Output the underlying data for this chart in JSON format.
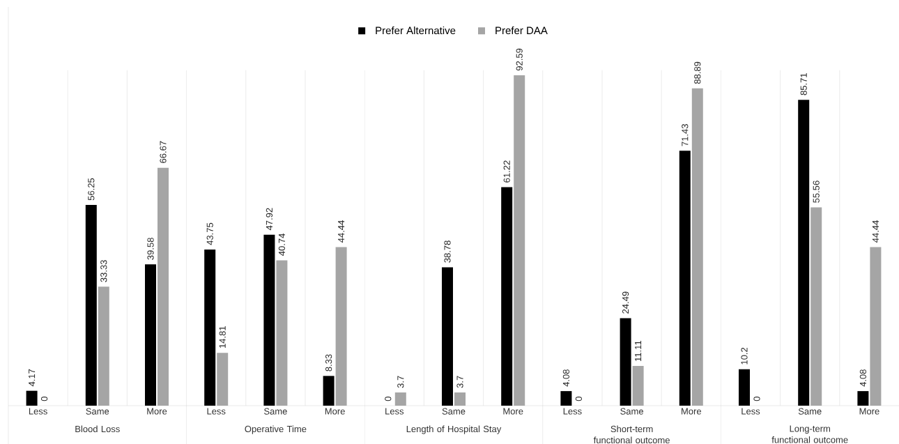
{
  "chart_data": {
    "type": "bar",
    "categories": [
      "Less",
      "Same",
      "More",
      "Less",
      "Same",
      "More",
      "Less",
      "Same",
      "More",
      "Less",
      "Same",
      "More",
      "Less",
      "Same",
      "More"
    ],
    "annotations": [
      "Blood Loss",
      "Operative Time",
      "Length of Hospital Stay",
      "Short-term functional outcome",
      "Long-term functional outcome"
    ],
    "series": [
      {
        "name": "Prefer Alternative",
        "color": "#000000",
        "values": [
          4.17,
          56.25,
          39.58,
          43.75,
          47.92,
          8.33,
          0,
          38.78,
          61.22,
          4.08,
          24.49,
          71.43,
          10.2,
          85.71,
          4.08
        ]
      },
      {
        "name": "Prefer DAA",
        "color": "#a5a5a5",
        "values": [
          0,
          33.33,
          66.67,
          14.81,
          40.74,
          44.44,
          3.7,
          3.7,
          92.59,
          0,
          11.11,
          88.89,
          0,
          55.56,
          44.44
        ]
      }
    ],
    "data_labels": true,
    "legend": "top"
  }
}
